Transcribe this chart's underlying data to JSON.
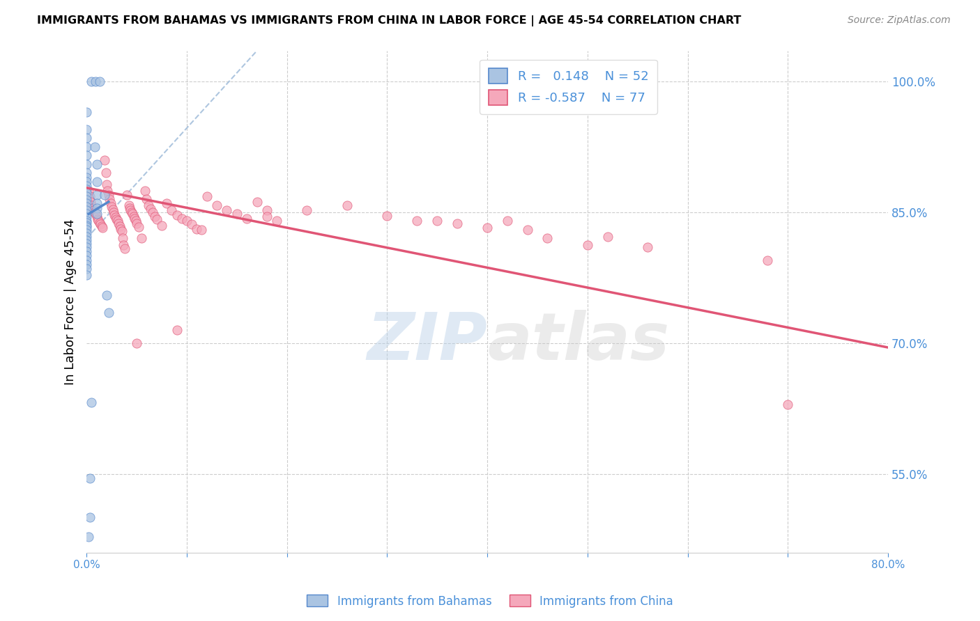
{
  "title": "IMMIGRANTS FROM BAHAMAS VS IMMIGRANTS FROM CHINA IN LABOR FORCE | AGE 45-54 CORRELATION CHART",
  "source": "Source: ZipAtlas.com",
  "ylabel": "In Labor Force | Age 45-54",
  "x_min": 0.0,
  "x_max": 0.8,
  "y_min": 0.46,
  "y_max": 1.035,
  "color_bahamas": "#aac4e2",
  "color_china": "#f5a8bb",
  "line_color_bahamas": "#5588cc",
  "line_color_china": "#e05575",
  "diagonal_color": "#9ab8d8",
  "watermark_zip": "ZIP",
  "watermark_atlas": "atlas",
  "bahamas_points": [
    [
      0.005,
      1.0
    ],
    [
      0.009,
      1.0
    ],
    [
      0.013,
      1.0
    ],
    [
      0.0,
      0.965
    ],
    [
      0.0,
      0.945
    ],
    [
      0.0,
      0.935
    ],
    [
      0.0,
      0.925
    ],
    [
      0.0,
      0.915
    ],
    [
      0.0,
      0.905
    ],
    [
      0.0,
      0.895
    ],
    [
      0.0,
      0.89
    ],
    [
      0.0,
      0.885
    ],
    [
      0.0,
      0.88
    ],
    [
      0.0,
      0.876
    ],
    [
      0.0,
      0.872
    ],
    [
      0.0,
      0.868
    ],
    [
      0.0,
      0.864
    ],
    [
      0.0,
      0.86
    ],
    [
      0.0,
      0.856
    ],
    [
      0.0,
      0.852
    ],
    [
      0.0,
      0.848
    ],
    [
      0.0,
      0.844
    ],
    [
      0.0,
      0.84
    ],
    [
      0.0,
      0.838
    ],
    [
      0.0,
      0.835
    ],
    [
      0.0,
      0.833
    ],
    [
      0.0,
      0.83
    ],
    [
      0.0,
      0.826
    ],
    [
      0.0,
      0.822
    ],
    [
      0.0,
      0.818
    ],
    [
      0.0,
      0.814
    ],
    [
      0.0,
      0.81
    ],
    [
      0.0,
      0.805
    ],
    [
      0.0,
      0.8
    ],
    [
      0.0,
      0.795
    ],
    [
      0.0,
      0.79
    ],
    [
      0.0,
      0.785
    ],
    [
      0.0,
      0.778
    ],
    [
      0.008,
      0.925
    ],
    [
      0.01,
      0.905
    ],
    [
      0.01,
      0.885
    ],
    [
      0.01,
      0.87
    ],
    [
      0.01,
      0.86
    ],
    [
      0.01,
      0.855
    ],
    [
      0.01,
      0.848
    ],
    [
      0.018,
      0.87
    ],
    [
      0.02,
      0.755
    ],
    [
      0.022,
      0.735
    ],
    [
      0.005,
      0.632
    ],
    [
      0.003,
      0.545
    ],
    [
      0.003,
      0.5
    ],
    [
      0.002,
      0.478
    ]
  ],
  "china_points": [
    [
      0.002,
      0.875
    ],
    [
      0.003,
      0.868
    ],
    [
      0.004,
      0.862
    ],
    [
      0.005,
      0.858
    ],
    [
      0.006,
      0.855
    ],
    [
      0.007,
      0.852
    ],
    [
      0.008,
      0.85
    ],
    [
      0.009,
      0.848
    ],
    [
      0.01,
      0.845
    ],
    [
      0.011,
      0.842
    ],
    [
      0.012,
      0.84
    ],
    [
      0.013,
      0.838
    ],
    [
      0.014,
      0.836
    ],
    [
      0.015,
      0.834
    ],
    [
      0.016,
      0.832
    ],
    [
      0.018,
      0.91
    ],
    [
      0.019,
      0.895
    ],
    [
      0.02,
      0.882
    ],
    [
      0.021,
      0.875
    ],
    [
      0.022,
      0.87
    ],
    [
      0.023,
      0.865
    ],
    [
      0.024,
      0.86
    ],
    [
      0.025,
      0.856
    ],
    [
      0.026,
      0.853
    ],
    [
      0.027,
      0.85
    ],
    [
      0.028,
      0.847
    ],
    [
      0.029,
      0.844
    ],
    [
      0.03,
      0.842
    ],
    [
      0.031,
      0.84
    ],
    [
      0.032,
      0.837
    ],
    [
      0.033,
      0.834
    ],
    [
      0.034,
      0.831
    ],
    [
      0.035,
      0.828
    ],
    [
      0.036,
      0.82
    ],
    [
      0.037,
      0.812
    ],
    [
      0.038,
      0.808
    ],
    [
      0.04,
      0.87
    ],
    [
      0.042,
      0.858
    ],
    [
      0.043,
      0.855
    ],
    [
      0.044,
      0.852
    ],
    [
      0.045,
      0.85
    ],
    [
      0.046,
      0.848
    ],
    [
      0.047,
      0.845
    ],
    [
      0.048,
      0.843
    ],
    [
      0.049,
      0.84
    ],
    [
      0.05,
      0.837
    ],
    [
      0.052,
      0.833
    ],
    [
      0.055,
      0.82
    ],
    [
      0.058,
      0.875
    ],
    [
      0.06,
      0.865
    ],
    [
      0.062,
      0.858
    ],
    [
      0.064,
      0.854
    ],
    [
      0.066,
      0.85
    ],
    [
      0.068,
      0.845
    ],
    [
      0.07,
      0.842
    ],
    [
      0.075,
      0.835
    ],
    [
      0.08,
      0.86
    ],
    [
      0.085,
      0.852
    ],
    [
      0.09,
      0.847
    ],
    [
      0.095,
      0.843
    ],
    [
      0.1,
      0.84
    ],
    [
      0.105,
      0.836
    ],
    [
      0.11,
      0.831
    ],
    [
      0.115,
      0.83
    ],
    [
      0.12,
      0.868
    ],
    [
      0.13,
      0.858
    ],
    [
      0.14,
      0.852
    ],
    [
      0.15,
      0.848
    ],
    [
      0.16,
      0.843
    ],
    [
      0.17,
      0.862
    ],
    [
      0.18,
      0.852
    ],
    [
      0.19,
      0.84
    ],
    [
      0.22,
      0.852
    ],
    [
      0.26,
      0.858
    ],
    [
      0.3,
      0.846
    ],
    [
      0.33,
      0.84
    ],
    [
      0.35,
      0.84
    ],
    [
      0.37,
      0.837
    ],
    [
      0.4,
      0.832
    ],
    [
      0.42,
      0.84
    ],
    [
      0.44,
      0.83
    ],
    [
      0.46,
      0.82
    ],
    [
      0.5,
      0.812
    ],
    [
      0.52,
      0.822
    ],
    [
      0.56,
      0.81
    ],
    [
      0.68,
      0.795
    ],
    [
      0.09,
      0.715
    ],
    [
      0.05,
      0.7
    ],
    [
      0.18,
      0.845
    ],
    [
      0.7,
      0.63
    ]
  ],
  "bahamas_trendline": [
    [
      0.002,
      0.848
    ],
    [
      0.022,
      0.862
    ]
  ],
  "china_trendline": [
    [
      0.0,
      0.878
    ],
    [
      0.8,
      0.695
    ]
  ]
}
